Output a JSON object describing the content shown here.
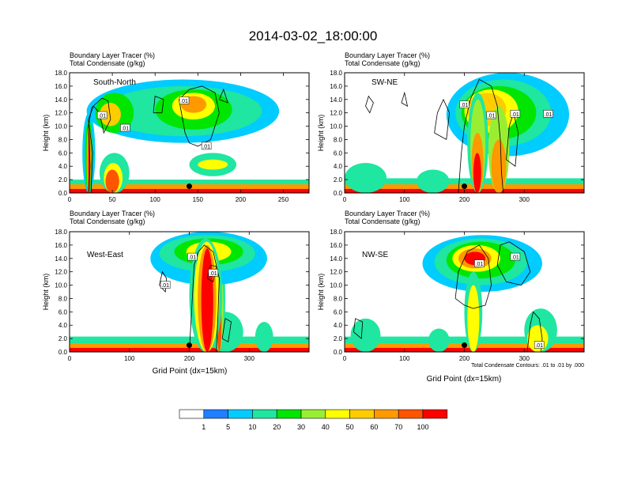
{
  "figure_title": "2014-03-02_18:00:00",
  "colors": {
    "levels": [
      "#ffffff",
      "#1f7fff",
      "#00ccff",
      "#1fe6a0",
      "#00e600",
      "#99ee33",
      "#ffff00",
      "#ffcc00",
      "#ff9900",
      "#ff5500",
      "#ff0000"
    ],
    "contour": "#000000"
  },
  "chart_data": [
    {
      "type": "heatmap",
      "panel_label": "South-North",
      "title_line1": "Boundary Layer Tracer    (%)",
      "title_line2": "Total Condensate   (g/kg)",
      "ylabel": "Height (km)",
      "xlabel": "",
      "xlim": [
        0,
        280
      ],
      "ylim": [
        0,
        18
      ],
      "xticks": [
        0,
        50,
        100,
        150,
        200,
        250
      ],
      "yticks": [
        "0.0",
        "2.0",
        "4.0",
        "6.0",
        "8.0",
        "10.0",
        "12.0",
        "14.0",
        "16.0",
        "18.0"
      ],
      "contour_labels": [
        {
          "text": ".01",
          "x": 38,
          "y": 11.6
        },
        {
          "text": ".01",
          "x": 134,
          "y": 13.8
        },
        {
          "text": ".01",
          "x": 65,
          "y": 9.7
        },
        {
          "text": ".01",
          "x": 160,
          "y": 7.0
        }
      ],
      "marker": {
        "x": 140,
        "y": 1.0
      }
    },
    {
      "type": "heatmap",
      "panel_label": "SW-NE",
      "title_line1": "Boundary Layer Tracer    (%)",
      "title_line2": "Total Condensate   (g/kg)",
      "ylabel": "Height (km)",
      "xlabel": "",
      "xlim": [
        0,
        400
      ],
      "ylim": [
        0,
        18
      ],
      "xticks": [
        0,
        100,
        200,
        300
      ],
      "yticks": [
        "0.0",
        "2.0",
        "4.0",
        "6.0",
        "8.0",
        "10.0",
        "12.0",
        "14.0",
        "16.0",
        "18.0"
      ],
      "contour_labels": [
        {
          "text": ".01",
          "x": 340,
          "y": 11.8
        },
        {
          "text": ".01",
          "x": 200,
          "y": 13.2
        },
        {
          "text": ".01",
          "x": 245,
          "y": 11.6
        },
        {
          "text": ".01",
          "x": 285,
          "y": 11.8
        }
      ],
      "marker": {
        "x": 200,
        "y": 1.0
      }
    },
    {
      "type": "heatmap",
      "panel_label": "West-East",
      "title_line1": "Boundary Layer Tracer    (%)",
      "title_line2": "Total Condensate   (g/kg)",
      "ylabel": "Height (km)",
      "xlabel": "Grid Point  (dx=15km)",
      "xlim": [
        0,
        400
      ],
      "ylim": [
        0,
        18
      ],
      "xticks": [
        0,
        100,
        200,
        300
      ],
      "yticks": [
        "0.0",
        "2.0",
        "4.0",
        "6.0",
        "8.0",
        "10.0",
        "12.0",
        "14.0",
        "16.0",
        "18.0"
      ],
      "contour_labels": [
        {
          "text": ".01",
          "x": 205,
          "y": 14.2
        },
        {
          "text": ".01",
          "x": 240,
          "y": 11.8
        },
        {
          "text": ".01",
          "x": 160,
          "y": 10.0
        }
      ],
      "marker": {
        "x": 200,
        "y": 1.0
      }
    },
    {
      "type": "heatmap",
      "panel_label": "NW-SE",
      "title_line1": "Boundary Layer Tracer    (%)",
      "title_line2": "Total Condensate   (g/kg)",
      "ylabel": "Height (km)",
      "xlabel": "Grid Point  (dx=15km)",
      "xlim": [
        0,
        400
      ],
      "ylim": [
        0,
        18
      ],
      "xticks": [
        0,
        100,
        200,
        300
      ],
      "yticks": [
        "0.0",
        "2.0",
        "4.0",
        "6.0",
        "8.0",
        "10.0",
        "12.0",
        "14.0",
        "16.0",
        "18.0"
      ],
      "contour_labels": [
        {
          "text": ".01",
          "x": 225,
          "y": 13.2
        },
        {
          "text": ".01",
          "x": 285,
          "y": 14.2
        },
        {
          "text": ".01",
          "x": 325,
          "y": 1.0
        }
      ],
      "marker": {
        "x": 200,
        "y": 1.0
      },
      "footnote": "Total Condensate Contours: .01 to .01 by .000"
    }
  ],
  "colorbar": {
    "labels": [
      "1",
      "5",
      "10",
      "20",
      "30",
      "40",
      "50",
      "60",
      "70",
      "100"
    ]
  }
}
